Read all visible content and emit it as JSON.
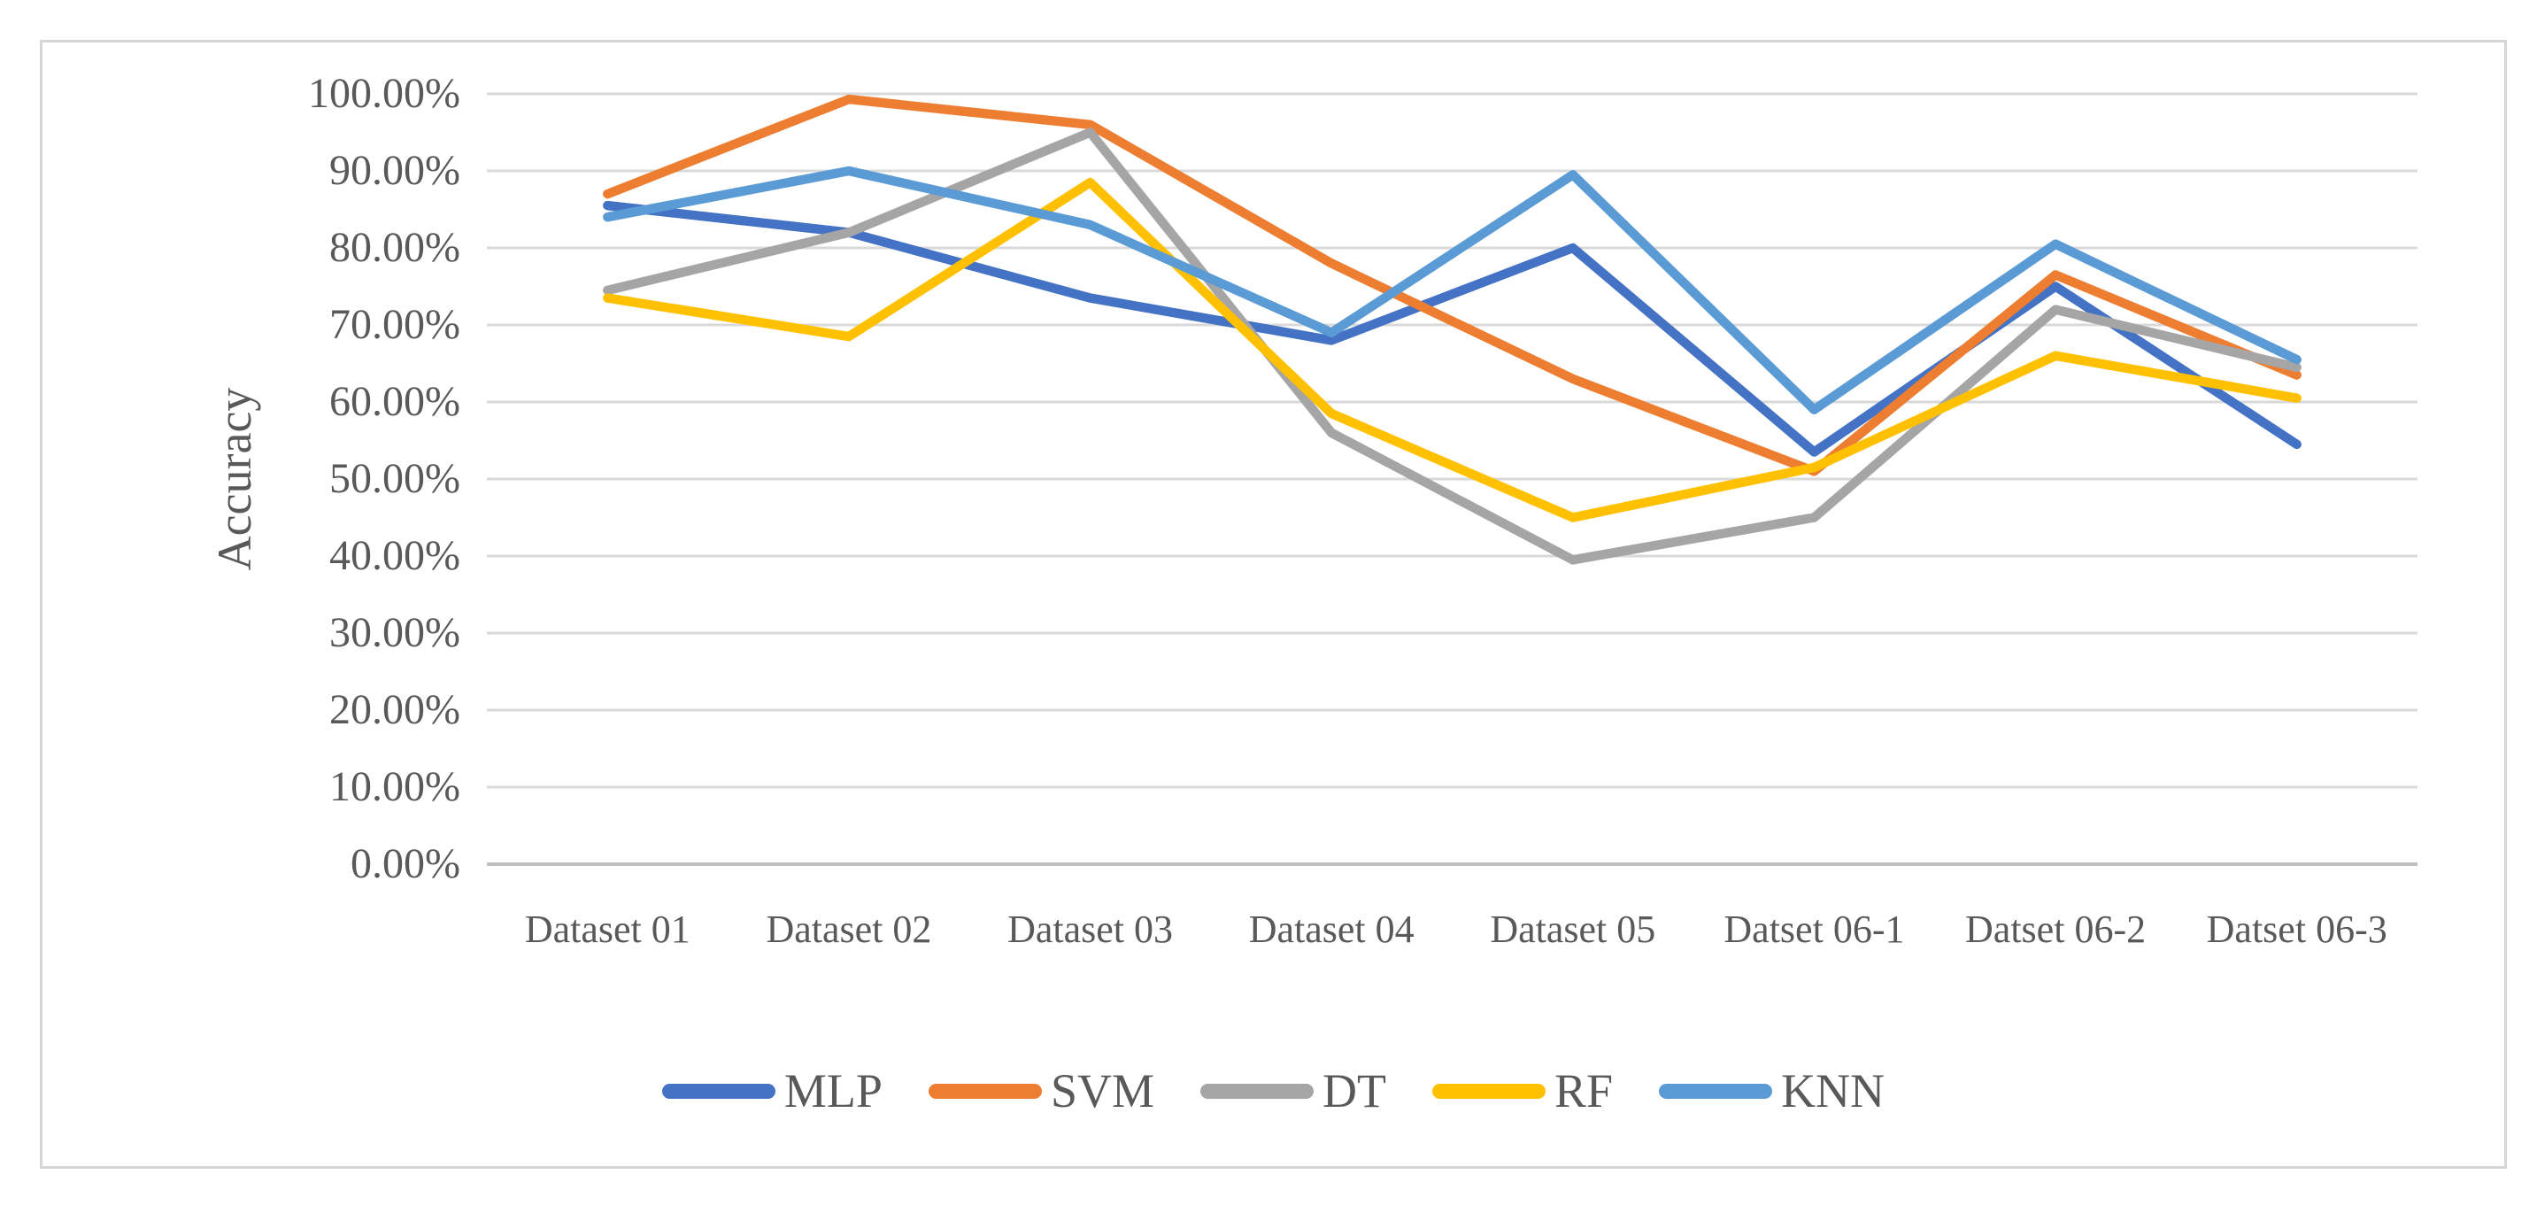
{
  "chart_data": {
    "type": "line",
    "title": "",
    "xlabel": "",
    "ylabel": "Accuracy",
    "categories": [
      "Dataset 01",
      "Dataset 02",
      "Dataset 03",
      "Dataset 04",
      "Dataset 05",
      "Datset 06-1",
      "Datset 06-2",
      "Datset 06-3"
    ],
    "series": [
      {
        "name": "MLP",
        "color": "#4472C4",
        "values": [
          85.5,
          82.0,
          73.5,
          68.0,
          80.0,
          53.5,
          75.0,
          54.5
        ]
      },
      {
        "name": "SVM",
        "color": "#ED7D31",
        "values": [
          87.0,
          99.3,
          96.0,
          78.0,
          63.0,
          51.0,
          76.5,
          63.5
        ]
      },
      {
        "name": "DT",
        "color": "#A5A5A5",
        "values": [
          74.5,
          82.0,
          95.0,
          56.0,
          39.5,
          45.0,
          72.0,
          64.5
        ]
      },
      {
        "name": "RF",
        "color": "#FFC000",
        "values": [
          73.5,
          68.5,
          88.5,
          58.5,
          45.0,
          51.5,
          66.0,
          60.5
        ]
      },
      {
        "name": "KNN",
        "color": "#5B9BD5",
        "values": [
          84.0,
          90.0,
          83.0,
          69.0,
          89.5,
          59.0,
          80.5,
          65.5
        ]
      }
    ],
    "y_axis": {
      "min": 0,
      "max": 100,
      "step": 10,
      "tick_labels": [
        "0.00%",
        "10.00%",
        "20.00%",
        "30.00%",
        "40.00%",
        "50.00%",
        "60.00%",
        "70.00%",
        "80.00%",
        "90.00%",
        "100.00%"
      ]
    },
    "grid": true,
    "legend_position": "bottom",
    "styles": {
      "gridline_color": "#D9D9D9",
      "axis_line_color": "#BFBFBF",
      "text_color": "#595959",
      "figure_border_color": "#D6D6D6"
    }
  }
}
